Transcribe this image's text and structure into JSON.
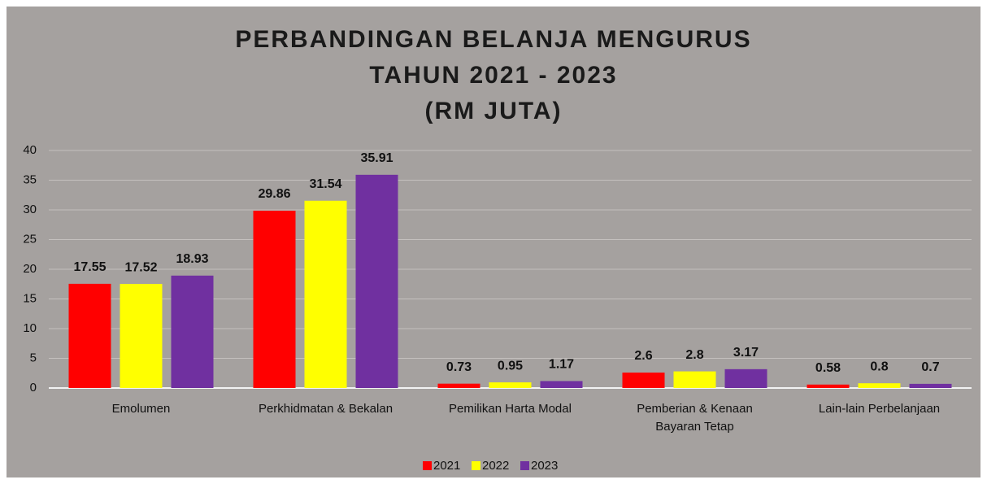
{
  "chart_data": {
    "type": "bar",
    "title": [
      "PERBANDINGAN BELANJA MENGURUS",
      "TAHUN 2021 - 2023",
      "(RM JUTA)"
    ],
    "categories": [
      "Emolumen",
      "Perkhidmatan & Bekalan",
      "Pemilikan Harta Modal",
      "Pemberian & Kenaan Bayaran Tetap",
      "Lain-lain Perbelanjaan"
    ],
    "series": [
      {
        "name": "2021",
        "color": "#ff0000",
        "values": [
          17.55,
          29.86,
          0.73,
          2.6,
          0.58
        ]
      },
      {
        "name": "2022",
        "color": "#ffff00",
        "values": [
          17.52,
          31.54,
          0.95,
          2.8,
          0.8
        ]
      },
      {
        "name": "2023",
        "color": "#7030a0",
        "values": [
          18.93,
          35.91,
          1.17,
          3.17,
          0.7
        ]
      }
    ],
    "ylim": [
      0,
      40
    ],
    "yticks": [
      0,
      5,
      10,
      15,
      20,
      25,
      30,
      35,
      40
    ],
    "grid": true,
    "legend": "bottom"
  }
}
